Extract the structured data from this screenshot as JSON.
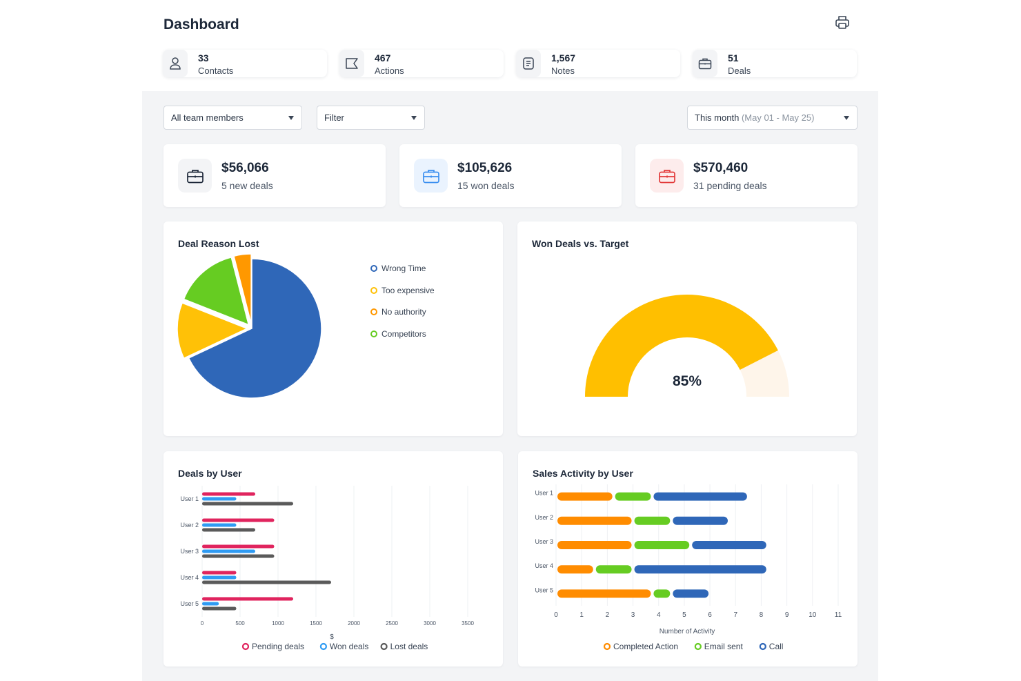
{
  "header": {
    "title": "Dashboard",
    "print_icon": "printer-icon"
  },
  "stats": [
    {
      "value": "33",
      "label": "Contacts",
      "icon": "user-icon"
    },
    {
      "value": "467",
      "label": "Actions",
      "icon": "flag-icon"
    },
    {
      "value": "1,567",
      "label": "Notes",
      "icon": "note-icon"
    },
    {
      "value": "51",
      "label": "Deals",
      "icon": "briefcase-icon"
    }
  ],
  "filters": {
    "team": "All team members",
    "filter": "Filter",
    "period": "This month",
    "period_range": "(May 01 - May 25)"
  },
  "deals": [
    {
      "amount": "$56,066",
      "label": "5 new deals",
      "color": "#1c2738",
      "bg": "#f3f4f6"
    },
    {
      "amount": "$105,626",
      "label": "15 won deals",
      "color": "#3b8ff0",
      "bg": "#eaf3fe"
    },
    {
      "amount": "$570,460",
      "label": "31 pending deals",
      "color": "#e23a3a",
      "bg": "#fdecec"
    }
  ],
  "chart_data": [
    {
      "type": "pie",
      "title": "Deal Reason Lost",
      "slices": [
        {
          "label": "Wrong Time",
          "value": 68,
          "color": "#2f67b8"
        },
        {
          "label": "Too expensive",
          "value": 13,
          "color": "#ffc107"
        },
        {
          "label": "No authority",
          "value": 4,
          "color": "#ff9800"
        },
        {
          "label": "Competitors",
          "value": 15,
          "color": "#66cc22"
        }
      ],
      "legend_order": [
        "Wrong Time",
        "Too expensive",
        "No authority",
        "Competitors"
      ],
      "legend_position": "right"
    },
    {
      "type": "gauge",
      "title": "Won Deals vs. Target",
      "value": 85,
      "value_label": "85%",
      "colors": {
        "fill": "#ffbf00",
        "track": "#fef5ea"
      }
    },
    {
      "type": "bar",
      "orientation": "horizontal",
      "title": "Deals by User",
      "categories": [
        "User 1",
        "User 2",
        "User 3",
        "User 4",
        "User 5"
      ],
      "series": [
        {
          "name": "Pending deals",
          "values": [
            700,
            950,
            950,
            450,
            1200
          ],
          "color": "#e0245e"
        },
        {
          "name": "Won deals",
          "values": [
            450,
            450,
            700,
            450,
            220
          ],
          "color": "#2f9bf3"
        },
        {
          "name": "Lost deals",
          "values": [
            1200,
            700,
            950,
            1700,
            450
          ],
          "color": "#5a5a5a"
        }
      ],
      "xlim": [
        0,
        3500
      ],
      "xticks": [
        0,
        500,
        1000,
        1500,
        2000,
        2500,
        3000,
        3500
      ],
      "xlabel": "$",
      "grid": true,
      "legend_position": "bottom"
    },
    {
      "type": "bar",
      "orientation": "horizontal",
      "stacked": true,
      "title": "Sales Activity by User",
      "categories": [
        "User 1",
        "User 2",
        "User 3",
        "User 4",
        "User 5"
      ],
      "series": [
        {
          "name": "Completed Action",
          "values": [
            2.25,
            3,
            3,
            1.5,
            3.75
          ],
          "color": "#ff8c00"
        },
        {
          "name": "Email sent",
          "values": [
            1.5,
            1.5,
            2.25,
            1.5,
            0.75
          ],
          "color": "#66cc22"
        },
        {
          "name": "Call",
          "values": [
            3.75,
            2.25,
            3,
            5.25,
            1.5
          ],
          "color": "#2f67b8"
        }
      ],
      "xlim": [
        0,
        11
      ],
      "xticks": [
        0,
        1,
        2,
        3,
        4,
        5,
        6,
        7,
        8,
        9,
        10,
        11
      ],
      "xlabel": "Number of Activity",
      "grid": true,
      "legend_position": "bottom"
    }
  ]
}
